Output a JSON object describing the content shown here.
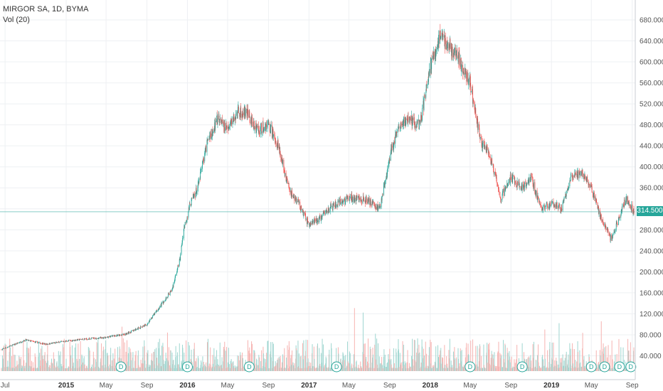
{
  "legend": {
    "symbol_line": "MIRGOR SA, 1D, BYMA",
    "volume_line": "Vol (20)"
  },
  "last_price": "314.500",
  "colors": {
    "up": "#26a69a",
    "down": "#ef5350",
    "volume_up": "#9fd6d0",
    "volume_down": "#f6b3b1",
    "grid": "#eef0f3",
    "price_line": "#26a69a"
  },
  "chart_data": {
    "type": "candlestick",
    "title": "MIRGOR SA, 1D, BYMA",
    "ylim": [
      0,
      700
    ],
    "y_ticks": [
      "40.000",
      "80.000",
      "120.000",
      "160.000",
      "200.000",
      "240.000",
      "280.000",
      "320.000",
      "360.000",
      "400.000",
      "440.000",
      "480.000",
      "520.000",
      "560.000",
      "600.000",
      "640.000",
      "680.000"
    ],
    "y_tick_values": [
      40,
      80,
      120,
      160,
      200,
      240,
      280,
      320,
      360,
      400,
      440,
      480,
      520,
      560,
      600,
      640,
      680
    ],
    "x_ticks": [
      {
        "label": "Jul",
        "date": "2014-07-01",
        "year": false
      },
      {
        "label": "2015",
        "date": "2015-01-01",
        "year": true
      },
      {
        "label": "May",
        "date": "2015-05-01",
        "year": false
      },
      {
        "label": "Sep",
        "date": "2015-09-01",
        "year": false
      },
      {
        "label": "2016",
        "date": "2016-01-01",
        "year": true
      },
      {
        "label": "May",
        "date": "2016-05-01",
        "year": false
      },
      {
        "label": "Sep",
        "date": "2016-09-01",
        "year": false
      },
      {
        "label": "2017",
        "date": "2017-01-01",
        "year": true
      },
      {
        "label": "May",
        "date": "2017-05-01",
        "year": false
      },
      {
        "label": "Sep",
        "date": "2017-09-01",
        "year": false
      },
      {
        "label": "2018",
        "date": "2018-01-01",
        "year": true
      },
      {
        "label": "May",
        "date": "2018-05-01",
        "year": false
      },
      {
        "label": "Sep",
        "date": "2018-09-01",
        "year": false
      },
      {
        "label": "2019",
        "date": "2019-01-01",
        "year": true
      },
      {
        "label": "May",
        "date": "2019-05-01",
        "year": false
      },
      {
        "label": "Sep",
        "date": "2019-09-01",
        "year": false
      }
    ],
    "x_range": [
      "2014-06-20",
      "2019-09-06"
    ],
    "price_series": {
      "name": "MIRGOR SA",
      "dates": [
        "2014-06-20",
        "2014-09-01",
        "2014-11-01",
        "2015-01-01",
        "2015-03-01",
        "2015-05-01",
        "2015-07-01",
        "2015-09-01",
        "2015-10-15",
        "2015-11-15",
        "2015-12-10",
        "2015-12-20",
        "2016-01-10",
        "2016-02-01",
        "2016-03-01",
        "2016-04-01",
        "2016-05-01",
        "2016-06-01",
        "2016-07-01",
        "2016-08-01",
        "2016-09-01",
        "2016-10-01",
        "2016-11-01",
        "2016-12-01",
        "2017-01-01",
        "2017-02-01",
        "2017-03-01",
        "2017-04-01",
        "2017-05-01",
        "2017-06-01",
        "2017-07-01",
        "2017-08-01",
        "2017-09-01",
        "2017-10-01",
        "2017-11-01",
        "2017-12-01",
        "2018-01-01",
        "2018-02-01",
        "2018-03-01",
        "2018-04-01",
        "2018-05-01",
        "2018-06-01",
        "2018-07-01",
        "2018-08-01",
        "2018-09-01",
        "2018-10-01",
        "2018-11-01",
        "2018-12-01",
        "2019-01-01",
        "2019-02-01",
        "2019-03-01",
        "2019-04-01",
        "2019-05-01",
        "2019-06-01",
        "2019-07-01",
        "2019-08-01",
        "2019-08-15",
        "2019-09-06"
      ],
      "close": [
        52,
        70,
        62,
        68,
        72,
        75,
        82,
        100,
        138,
        165,
        225,
        280,
        330,
        360,
        450,
        490,
        470,
        505,
        500,
        470,
        480,
        440,
        360,
        330,
        290,
        300,
        320,
        330,
        340,
        340,
        335,
        320,
        420,
        480,
        490,
        480,
        590,
        650,
        630,
        600,
        560,
        450,
        420,
        340,
        380,
        360,
        380,
        320,
        330,
        320,
        380,
        390,
        360,
        300,
        260,
        320,
        340,
        314.5
      ]
    },
    "volume_series": {
      "name": "Vol (20)",
      "ylim": [
        0,
        1000
      ]
    },
    "dividend_markers": [
      "D",
      "D",
      "D",
      "D",
      "D",
      "D",
      "D",
      "D",
      "D",
      "D"
    ],
    "dividend_dates": [
      "2015-06-15",
      "2016-01-01",
      "2016-07-05",
      "2017-03-25",
      "2018-05-01",
      "2018-10-05",
      "2019-05-01",
      "2019-06-10",
      "2019-07-25",
      "2019-08-28"
    ]
  }
}
